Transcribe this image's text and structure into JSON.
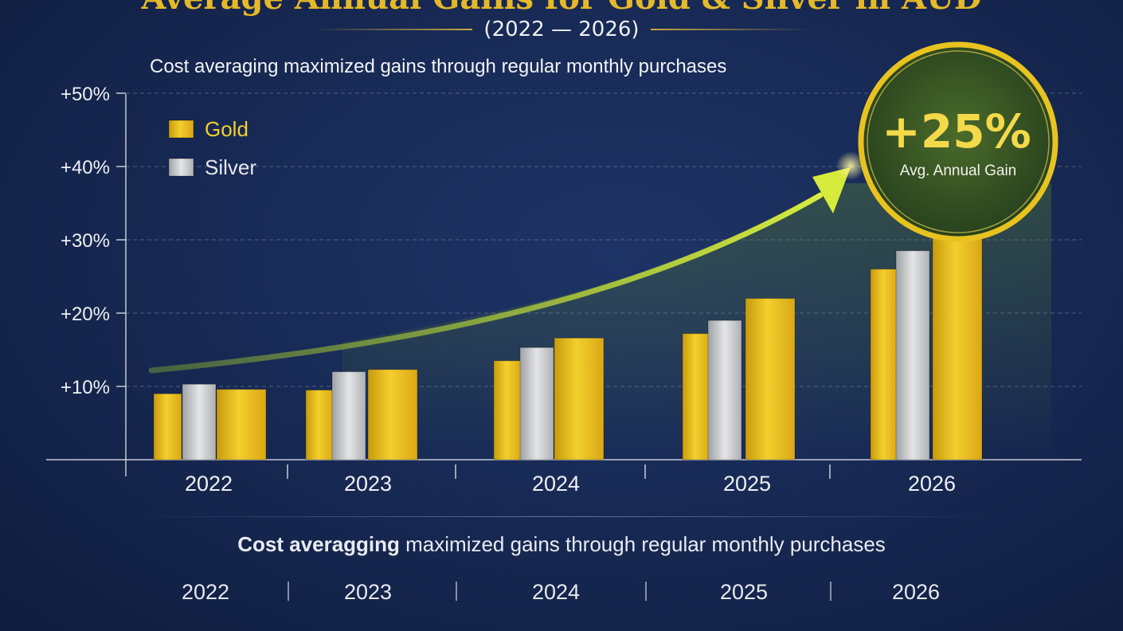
{
  "chart_data": {
    "type": "bar",
    "title": "Average Annual Gains for Gold & Silver in AUD",
    "subtitle": "(2022 — 2026)",
    "tagline": "Cost averaging maximized gains through regular monthly purchases",
    "categories": [
      "2022",
      "2023",
      "2024",
      "2025",
      "2026"
    ],
    "series": [
      {
        "name": "Gold",
        "values": [
          9,
          9.5,
          13.5,
          17.2,
          26
        ]
      },
      {
        "name": "Silver",
        "values": [
          10.3,
          12,
          15.3,
          19,
          28.5
        ]
      },
      {
        "values": [
          9.6,
          12.3,
          16.6,
          22,
          35.8
        ]
      }
    ],
    "legend": [
      "Gold",
      "Silver"
    ],
    "legend_position": "top-left",
    "yticks": [
      "+10%",
      "+20%",
      "+30%",
      "+40%",
      "+50%"
    ],
    "ylim": [
      0,
      50
    ],
    "grid": true,
    "callout": {
      "value": "+25%",
      "label": "Avg. Annual Gain"
    },
    "colors": {
      "gold": "#e6b91c",
      "silver": "#c9cbcd",
      "trend": "#c6dc3a",
      "background": "#182a55"
    }
  },
  "footer": {
    "tagline_bold": "Cost averagging",
    "tagline_rest": " maximized gains through regular monthly purchases",
    "years": [
      "2022",
      "2023",
      "2024",
      "2025",
      "2026"
    ]
  }
}
